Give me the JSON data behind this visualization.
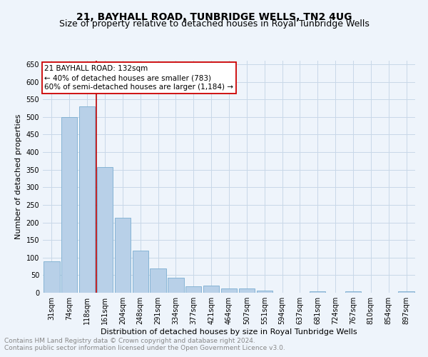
{
  "title": "21, BAYHALL ROAD, TUNBRIDGE WELLS, TN2 4UG",
  "subtitle": "Size of property relative to detached houses in Royal Tunbridge Wells",
  "xlabel": "Distribution of detached houses by size in Royal Tunbridge Wells",
  "ylabel": "Number of detached properties",
  "footnote1": "Contains HM Land Registry data © Crown copyright and database right 2024.",
  "footnote2": "Contains public sector information licensed under the Open Government Licence v3.0.",
  "categories": [
    "31sqm",
    "74sqm",
    "118sqm",
    "161sqm",
    "204sqm",
    "248sqm",
    "291sqm",
    "334sqm",
    "377sqm",
    "421sqm",
    "464sqm",
    "507sqm",
    "551sqm",
    "594sqm",
    "637sqm",
    "681sqm",
    "724sqm",
    "767sqm",
    "810sqm",
    "854sqm",
    "897sqm"
  ],
  "values": [
    90,
    500,
    530,
    358,
    213,
    120,
    70,
    43,
    18,
    20,
    12,
    13,
    7,
    0,
    0,
    5,
    0,
    5,
    0,
    0,
    5
  ],
  "bar_color": "#b8d0e8",
  "bar_edge_color": "#7aadd0",
  "grid_color": "#c8d8e8",
  "background_color": "#eef4fb",
  "red_line_x": 2.5,
  "red_line_color": "#bb0000",
  "annotation_text": "21 BAYHALL ROAD: 132sqm\n← 40% of detached houses are smaller (783)\n60% of semi-detached houses are larger (1,184) →",
  "annotation_box_color": "#cc0000",
  "ylim": [
    0,
    660
  ],
  "yticks": [
    0,
    50,
    100,
    150,
    200,
    250,
    300,
    350,
    400,
    450,
    500,
    550,
    600,
    650
  ],
  "title_fontsize": 10,
  "subtitle_fontsize": 9,
  "xlabel_fontsize": 8,
  "ylabel_fontsize": 8,
  "tick_fontsize": 7,
  "annotation_fontsize": 7.5,
  "footnote_fontsize": 6.5
}
